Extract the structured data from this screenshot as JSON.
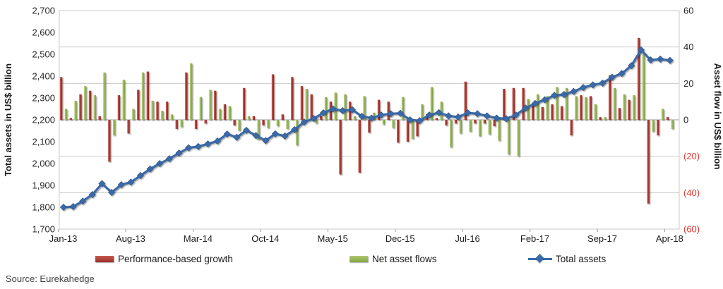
{
  "chart": {
    "left_axis": {
      "title": "Total assets in US$ billion",
      "min": 1700,
      "max": 2700,
      "step": 100,
      "tick_labels": [
        "2,700",
        "2,600",
        "2,500",
        "2,400",
        "2,300",
        "2,200",
        "2,100",
        "2,000",
        "1,900",
        "1,800",
        "1,700"
      ]
    },
    "right_axis": {
      "title": "Asset flow in US$ billion",
      "min": -60,
      "max": 60,
      "step": 20,
      "tick_labels": [
        "60",
        "40",
        "20",
        "0",
        "(20)",
        "(40)",
        "(60)"
      ],
      "negative_label_color": "#e0362c"
    },
    "x_axis": {
      "tick_labels": [
        "Jan-13",
        "Aug-13",
        "Mar-14",
        "Oct-14",
        "May-15",
        "Dec-15",
        "Jul-16",
        "Feb-17",
        "Sep-17",
        "Apr-18"
      ],
      "label_interval_months": 7
    },
    "legend": [
      {
        "label": "Performance-based growth",
        "color": "#b03a32",
        "type": "bar"
      },
      {
        "label": "Net asset flows",
        "color": "#9bbb59",
        "type": "bar"
      },
      {
        "label": "Total assets",
        "color": "#3a6aa8",
        "type": "line-diamond"
      }
    ],
    "source": "Source: Eurekahedge",
    "grid_color": "#c9c9c9",
    "axis_line_color": "#9a9a9a"
  },
  "chart_data": {
    "type": "bar+line",
    "categories": [
      "Jan-13",
      "Feb-13",
      "Mar-13",
      "Apr-13",
      "May-13",
      "Jun-13",
      "Jul-13",
      "Aug-13",
      "Sep-13",
      "Oct-13",
      "Nov-13",
      "Dec-13",
      "Jan-14",
      "Feb-14",
      "Mar-14",
      "Apr-14",
      "May-14",
      "Jun-14",
      "Jul-14",
      "Aug-14",
      "Sep-14",
      "Oct-14",
      "Nov-14",
      "Dec-14",
      "Jan-15",
      "Feb-15",
      "Mar-15",
      "Apr-15",
      "May-15",
      "Jun-15",
      "Jul-15",
      "Aug-15",
      "Sep-15",
      "Oct-15",
      "Nov-15",
      "Dec-15",
      "Jan-16",
      "Feb-16",
      "Mar-16",
      "Apr-16",
      "May-16",
      "Jun-16",
      "Jul-16",
      "Aug-16",
      "Sep-16",
      "Oct-16",
      "Nov-16",
      "Dec-16",
      "Jan-17",
      "Feb-17",
      "Mar-17",
      "Apr-17",
      "May-17",
      "Jun-17",
      "Jul-17",
      "Aug-17",
      "Sep-17",
      "Oct-17",
      "Nov-17",
      "Dec-17",
      "Jan-18",
      "Feb-18",
      "Mar-18",
      "Apr-18"
    ],
    "series": [
      {
        "name": "Performance-based growth",
        "type": "bar",
        "axis": "right",
        "values": [
          23.5,
          1,
          14,
          16,
          2,
          -23,
          13.5,
          -7.5,
          16.5,
          26.5,
          10,
          10,
          -5,
          26,
          -5,
          -2,
          16,
          8.5,
          -3,
          17.5,
          2,
          -3,
          25,
          3,
          23.5,
          18.5,
          14,
          2,
          10,
          -30,
          10,
          -29,
          -7,
          11,
          10,
          -12.5,
          -12,
          -9,
          3,
          1,
          -3,
          -2,
          21,
          -2,
          -2,
          -3.5,
          17,
          17.5,
          17.5,
          8.5,
          7,
          8.5,
          7.5,
          -8.5,
          13.5,
          13,
          1.5,
          24.5,
          6.5,
          11,
          45,
          -46,
          -8.5,
          1.5
        ]
      },
      {
        "name": "Net asset flows",
        "type": "bar",
        "axis": "right",
        "values": [
          6,
          10.5,
          18.5,
          13.5,
          26,
          -8.5,
          22,
          6,
          26,
          10.5,
          5,
          3,
          -4,
          31,
          12.5,
          16.5,
          6,
          7.5,
          -6,
          2,
          -11,
          -4.5,
          -3.5,
          -5,
          -14,
          17,
          -2,
          12.5,
          15,
          14,
          2,
          13,
          4,
          -2.5,
          -4.5,
          12.5,
          -10.5,
          8.5,
          18,
          10,
          -15,
          -7.5,
          -6.5,
          -9,
          -8,
          -11.5,
          -19,
          -20,
          11.5,
          14,
          13,
          18,
          17.5,
          13,
          12.5,
          8.5,
          1.5,
          17.5,
          14,
          13.5,
          37,
          -6.5,
          6,
          -5
        ]
      },
      {
        "name": "Total assets",
        "type": "line",
        "axis": "left",
        "values": [
          1800,
          1803,
          1828,
          1858,
          1908,
          1868,
          1903,
          1915,
          1945,
          1975,
          2000,
          2022,
          2048,
          2072,
          2078,
          2090,
          2103,
          2135,
          2120,
          2152,
          2128,
          2105,
          2136,
          2126,
          2155,
          2190,
          2206,
          2232,
          2250,
          2242,
          2246,
          2216,
          2208,
          2222,
          2228,
          2230,
          2200,
          2196,
          2222,
          2233,
          2218,
          2213,
          2232,
          2228,
          2218,
          2208,
          2205,
          2222,
          2254,
          2275,
          2292,
          2312,
          2316,
          2330,
          2348,
          2360,
          2368,
          2395,
          2412,
          2448,
          2520,
          2474,
          2478,
          2472
        ]
      }
    ],
    "left_axis_range": [
      1700,
      2700
    ],
    "right_axis_range": [
      -60,
      60
    ],
    "grid": "horizontal-only",
    "legend_position": "bottom"
  }
}
